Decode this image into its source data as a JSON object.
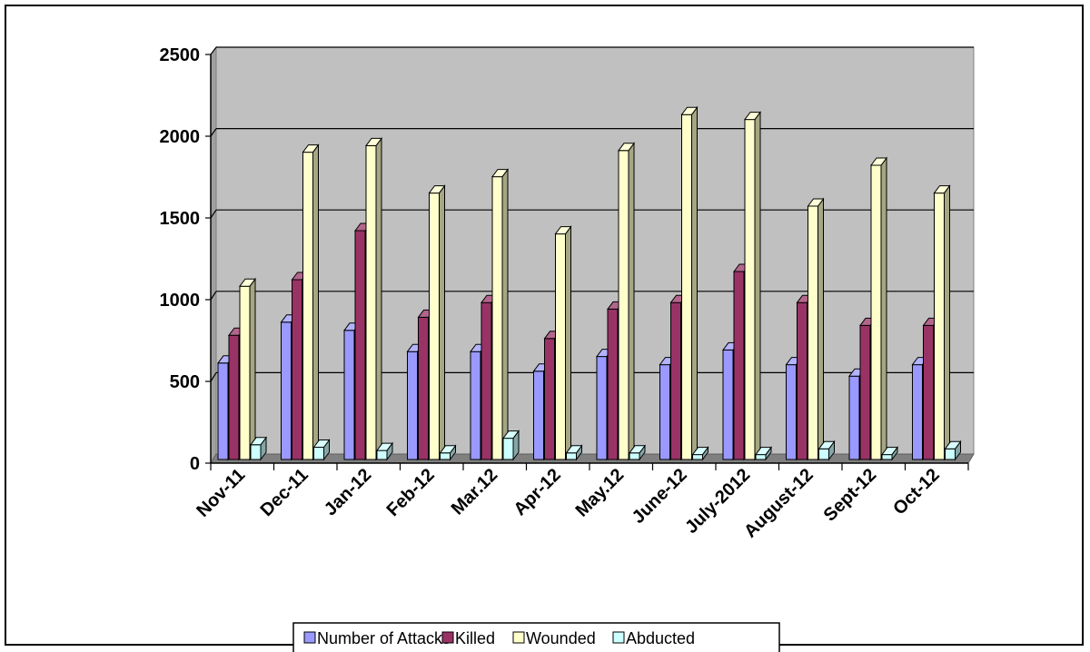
{
  "chart_data": {
    "type": "bar",
    "style": "3d-clustered-column",
    "categories": [
      "Nov-11",
      "Dec-11",
      "Jan-12",
      "Feb-12",
      "Mar.12",
      "Apr-12",
      "May.12",
      "June-12",
      "July-2012",
      "August-12",
      "Sept-12",
      "Oct-12"
    ],
    "series": [
      {
        "name": "Number of Attacks",
        "values": [
          590,
          840,
          790,
          660,
          660,
          540,
          630,
          580,
          670,
          580,
          510,
          580
        ]
      },
      {
        "name": "Killed",
        "values": [
          760,
          1100,
          1400,
          870,
          960,
          740,
          920,
          960,
          1150,
          960,
          820,
          820
        ]
      },
      {
        "name": "Wounded",
        "values": [
          1060,
          1880,
          1920,
          1630,
          1730,
          1380,
          1890,
          2110,
          2080,
          1550,
          1800,
          1630
        ]
      },
      {
        "name": "Abducted",
        "values": [
          90,
          75,
          55,
          40,
          130,
          40,
          40,
          30,
          30,
          65,
          30,
          65
        ]
      }
    ],
    "ylim": [
      0,
      2500
    ],
    "yticks": [
      0,
      500,
      1000,
      1500,
      2000,
      2500
    ],
    "grid": true,
    "legend_position": "bottom",
    "title": "",
    "xlabel": "",
    "ylabel": ""
  },
  "colors": {
    "plot_background": "#c0c0c0",
    "floor": "#808080",
    "series": [
      "#9999ff",
      "#993366",
      "#ffffcc",
      "#ccffff"
    ]
  }
}
